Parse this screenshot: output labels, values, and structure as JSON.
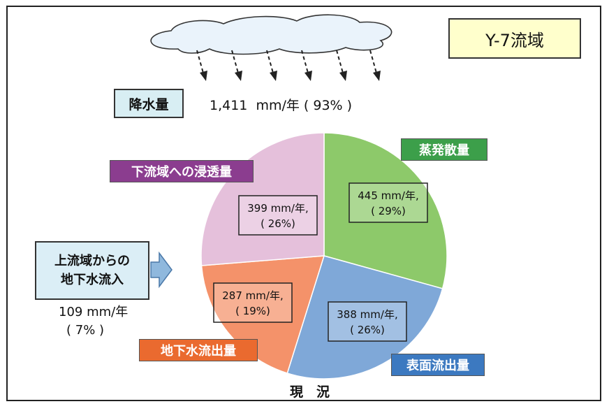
{
  "title": "Y-7流域",
  "precipitation": {
    "label": "降水量",
    "value": "1,411  mm/年 ( 93% )"
  },
  "inflow": {
    "line1": "上流域からの",
    "line2": "地下水流入",
    "value": "109 mm/年",
    "pct": "( 7% )"
  },
  "caption": "現　況",
  "colors": {
    "evap": "#8dc96a",
    "surface": "#7fa8d8",
    "ground": "#f4926a",
    "seep": "#e5c0db",
    "inflow_arrow": "#8fb8dd"
  },
  "chart_data": {
    "type": "pie",
    "title": "",
    "unit": "mm/年",
    "slices": [
      {
        "key": "evap",
        "label": "蒸発散量",
        "value": 445,
        "pct": 29,
        "text_value": "445 mm/年,",
        "text_pct": "( 29%)"
      },
      {
        "key": "surface",
        "label": "表面流出量",
        "value": 388,
        "pct": 26,
        "text_value": "388 mm/年,",
        "text_pct": "( 26%)"
      },
      {
        "key": "ground",
        "label": "地下水流出量",
        "value": 287,
        "pct": 19,
        "text_value": "287 mm/年,",
        "text_pct": "( 19%)"
      },
      {
        "key": "seep",
        "label": "下流域への浸透量",
        "value": 399,
        "pct": 26,
        "text_value": "399 mm/年,",
        "text_pct": "( 26%)"
      }
    ]
  }
}
